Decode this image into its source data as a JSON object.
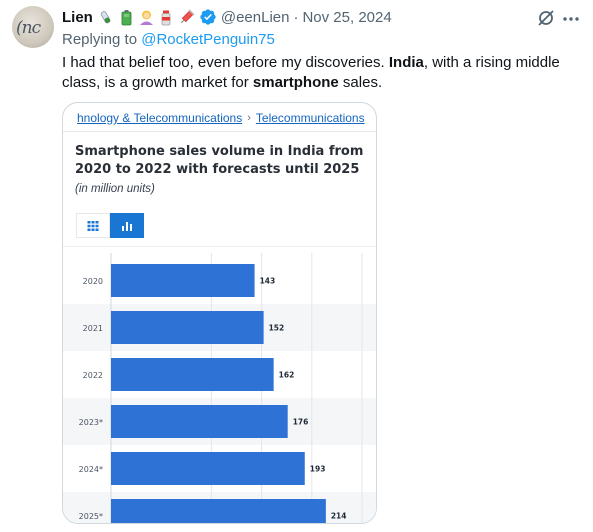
{
  "tweet": {
    "author_name": "Lien",
    "author_handle": "@eenLien",
    "separator": "·",
    "date": "Nov 25, 2024",
    "avatar_text": "(nc",
    "emojis": [
      "test-tube-icon",
      "battery-icon",
      "person-icon",
      "spray-can-icon",
      "syringe-icon"
    ],
    "verified_color": "#1d9bf0",
    "reply_prefix": "Replying to ",
    "reply_to": "@RocketPenguin75",
    "text_parts": {
      "p1": "I had that belief too, even before my discoveries. ",
      "b1": "India",
      "p2": ", with a rising middle class, is a growth market for ",
      "b2": "smartphone",
      "p3": " sales."
    }
  },
  "card": {
    "breadcrumb_1": "hnology & Telecommunications",
    "breadcrumb_sep": "›",
    "breadcrumb_2": "Telecommunications",
    "title": "Smartphone sales volume in India from 2020 to 2022 with forecasts until 2025",
    "subtitle": "(in million units)",
    "toggle_options": [
      "table-view-icon",
      "chart-view-icon"
    ],
    "active_toggle": "chart-view-icon",
    "accent_color": "#1976d2"
  },
  "chart_data": {
    "type": "bar",
    "orientation": "horizontal",
    "categories": [
      "2020",
      "2021",
      "2022",
      "2023*",
      "2024*",
      "2025*"
    ],
    "values": [
      143,
      152,
      162,
      176,
      193,
      214
    ],
    "data_labels": [
      "143",
      "152",
      "162",
      "176",
      "193",
      "214"
    ],
    "bar_color": "#2f72d6",
    "xlim": [
      0,
      250
    ],
    "grid": true,
    "banding": true
  }
}
